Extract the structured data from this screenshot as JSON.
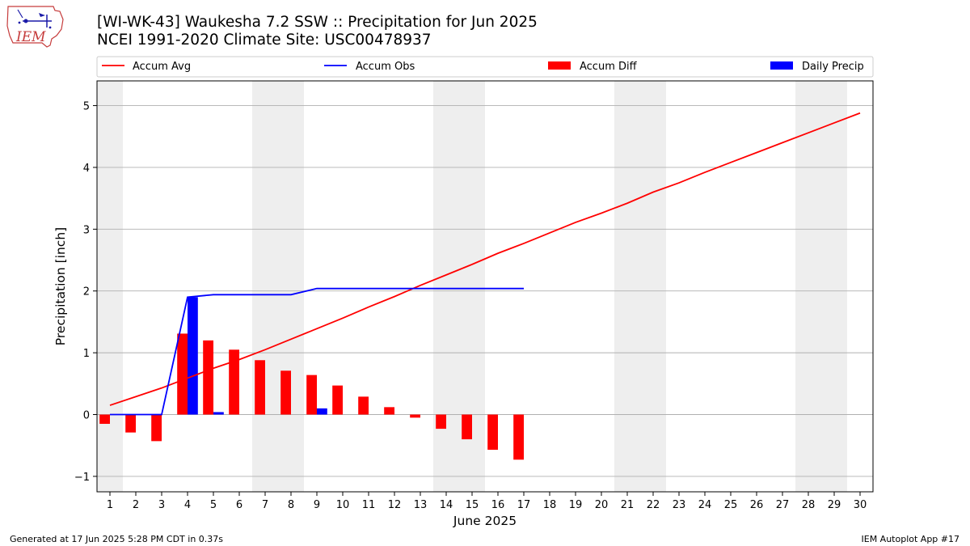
{
  "header": {
    "title_line1": "[WI-WK-43] Waukesha 7.2 SSW :: Precipitation for Jun 2025",
    "title_line2": "NCEI 1991-2020 Climate Site: USC00478937"
  },
  "logo": {
    "text": "IEM"
  },
  "footer": {
    "generated": "Generated at 17 Jun 2025 5:28 PM CDT in 0.37s",
    "app": "IEM Autoplot App #17"
  },
  "colors": {
    "accum_avg": "#ff0000",
    "accum_obs": "#0000ff",
    "accum_diff": "#ff0000",
    "daily_precip": "#0000ff",
    "weekend_shading": "#eeeeee",
    "grid": "#b0b0b0"
  },
  "chart_data": {
    "type": "bar",
    "xlabel": "June 2025",
    "ylabel": "Precipitation [inch]",
    "xlim": [
      0.5,
      30.5
    ],
    "ylim": [
      -1.25,
      5.4
    ],
    "x_ticks": [
      1,
      2,
      3,
      4,
      5,
      6,
      7,
      8,
      9,
      10,
      11,
      12,
      13,
      14,
      15,
      16,
      17,
      18,
      19,
      20,
      21,
      22,
      23,
      24,
      25,
      26,
      27,
      28,
      29,
      30
    ],
    "y_ticks": [
      -1,
      0,
      1,
      2,
      3,
      4,
      5
    ],
    "grid": "horizontal",
    "legend_placement": "top",
    "legend": [
      "Accum Avg",
      "Accum Obs",
      "Accum Diff",
      "Daily Precip"
    ],
    "weekend_shading": [
      [
        0.5,
        1.5
      ],
      [
        6.5,
        8.5
      ],
      [
        13.5,
        15.5
      ],
      [
        20.5,
        22.5
      ],
      [
        27.5,
        29.5
      ]
    ],
    "series": [
      {
        "name": "Accum Avg",
        "type": "line",
        "x": [
          1,
          2,
          3,
          4,
          5,
          6,
          7,
          8,
          9,
          10,
          11,
          12,
          13,
          14,
          15,
          16,
          17,
          18,
          19,
          20,
          21,
          22,
          23,
          24,
          25,
          26,
          27,
          28,
          29,
          30
        ],
        "values": [
          0.15,
          0.29,
          0.43,
          0.59,
          0.75,
          0.89,
          1.05,
          1.22,
          1.39,
          1.56,
          1.74,
          1.91,
          2.09,
          2.26,
          2.43,
          2.61,
          2.77,
          2.94,
          3.11,
          3.26,
          3.42,
          3.6,
          3.75,
          3.92,
          4.08,
          4.24,
          4.4,
          4.56,
          4.72,
          4.88
        ]
      },
      {
        "name": "Accum Obs",
        "type": "line",
        "x": [
          1,
          2,
          3,
          4,
          5,
          6,
          7,
          8,
          9,
          10,
          11,
          12,
          13,
          14,
          15,
          16,
          17
        ],
        "values": [
          0.0,
          0.0,
          0.0,
          1.9,
          1.94,
          1.94,
          1.94,
          1.94,
          2.04,
          2.04,
          2.04,
          2.04,
          2.04,
          2.04,
          2.04,
          2.04,
          2.04
        ]
      },
      {
        "name": "Accum Diff",
        "type": "bar",
        "x": [
          1,
          2,
          3,
          4,
          5,
          6,
          7,
          8,
          9,
          10,
          11,
          12,
          13,
          14,
          15,
          16,
          17
        ],
        "values": [
          -0.15,
          -0.29,
          -0.43,
          1.31,
          1.2,
          1.05,
          0.88,
          0.71,
          0.64,
          0.47,
          0.29,
          0.12,
          -0.05,
          -0.23,
          -0.4,
          -0.57,
          -0.73
        ]
      },
      {
        "name": "Daily Precip",
        "type": "bar",
        "x": [
          4,
          5,
          9
        ],
        "values": [
          1.9,
          0.04,
          0.1
        ]
      }
    ]
  }
}
